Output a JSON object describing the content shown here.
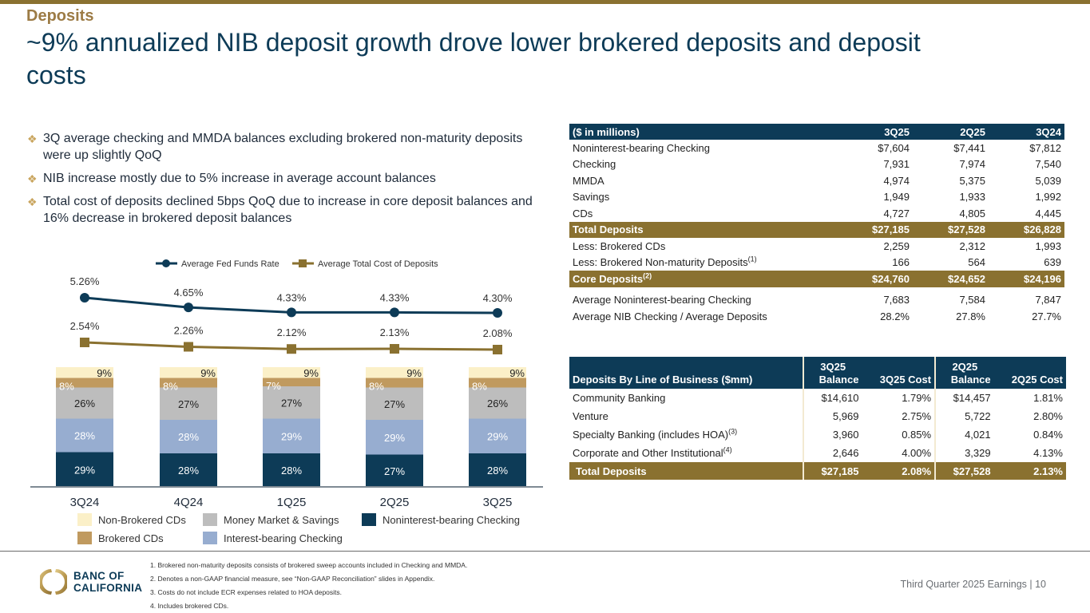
{
  "header": {
    "section": "Deposits",
    "headline": "~9% annualized NIB deposit growth drove lower brokered deposits and deposit costs"
  },
  "bullets": [
    "3Q average checking and MMDA balances excluding brokered non-maturity deposits were up slightly QoQ",
    "NIB increase mostly due to 5% increase in average account balances",
    "Total cost of deposits declined 5bps QoQ due to increase in core deposit balances and 16% decrease in brokered deposit balances"
  ],
  "bullet_icon": "diamond-bullet-icon",
  "colors": {
    "navy": "#0d3b57",
    "gold": "#8a7130",
    "section_gold": "#9c7b45",
    "line_gold": "#8a7130",
    "nib": "#0d3b57",
    "ibc": "#97add0",
    "mms": "#bdbdbd",
    "brokered_cds": "#c09a5f",
    "nonbrokered_cds": "#fbf0c8"
  },
  "chart_data": [
    {
      "type": "line",
      "title": "",
      "categories": [
        "3Q24",
        "4Q24",
        "1Q25",
        "2Q25",
        "3Q25"
      ],
      "legend_position": "top",
      "series": [
        {
          "name": "Average Fed Funds Rate",
          "marker": "circle",
          "values": [
            5.26,
            4.65,
            4.33,
            4.33,
            4.3
          ],
          "labels": [
            "5.26%",
            "4.65%",
            "4.33%",
            "4.33%",
            "4.30%"
          ]
        },
        {
          "name": "Average Total Cost of Deposits",
          "marker": "square",
          "values": [
            2.54,
            2.26,
            2.12,
            2.13,
            2.08
          ],
          "labels": [
            "2.54%",
            "2.26%",
            "2.12%",
            "2.13%",
            "2.08%"
          ]
        }
      ],
      "grid": false
    },
    {
      "type": "bar",
      "stacked": true,
      "categories": [
        "3Q24",
        "4Q24",
        "1Q25",
        "2Q25",
        "3Q25"
      ],
      "ylim": [
        0,
        100
      ],
      "grid": false,
      "legend_position": "bottom",
      "series": [
        {
          "name": "Noninterest-bearing Checking",
          "key": "nib",
          "values": [
            29,
            28,
            28,
            27,
            28
          ]
        },
        {
          "name": "Interest-bearing Checking",
          "key": "ibc",
          "values": [
            28,
            28,
            29,
            29,
            29
          ]
        },
        {
          "name": "Money Market & Savings",
          "key": "mms",
          "values": [
            26,
            27,
            27,
            27,
            26
          ]
        },
        {
          "name": "Brokered CDs",
          "key": "brokered_cds",
          "values": [
            8,
            8,
            7,
            8,
            8
          ]
        },
        {
          "name": "Non-Brokered CDs",
          "key": "nonbrokered_cds",
          "values": [
            9,
            9,
            9,
            9,
            9
          ]
        }
      ],
      "legend": [
        [
          "Non-Brokered CDs",
          "Money Market & Savings",
          "Noninterest-bearing Checking"
        ],
        [
          "Brokered CDs",
          "Interest-bearing Checking"
        ]
      ]
    }
  ],
  "fin_table": {
    "headers": [
      "($ in millions)",
      "3Q25",
      "2Q25",
      "3Q24"
    ],
    "rows": [
      {
        "label": "Noninterest-bearing Checking",
        "values": [
          "$7,604",
          "$7,441",
          "$7,812"
        ],
        "style": ""
      },
      {
        "label": "Checking",
        "values": [
          "7,931",
          "7,974",
          "7,540"
        ],
        "style": ""
      },
      {
        "label": "MMDA",
        "values": [
          "4,974",
          "5,375",
          "5,039"
        ],
        "style": ""
      },
      {
        "label": "Savings",
        "values": [
          "1,949",
          "1,933",
          "1,992"
        ],
        "style": ""
      },
      {
        "label": "CDs",
        "values": [
          "4,727",
          "4,805",
          "4,445"
        ],
        "style": ""
      },
      {
        "label": "Total Deposits",
        "values": [
          "$27,185",
          "$27,528",
          "$26,828"
        ],
        "style": "gold"
      },
      {
        "label": "Less: Brokered CDs",
        "values": [
          "2,259",
          "2,312",
          "1,993"
        ],
        "style": ""
      },
      {
        "label": "Less: Brokered Non-maturity Deposits",
        "sup": "(1)",
        "values": [
          "166",
          "564",
          "639"
        ],
        "style": ""
      },
      {
        "label": "Core Deposits",
        "sup": "(2)",
        "values": [
          "$24,760",
          "$24,652",
          "$24,196"
        ],
        "style": "gold"
      },
      {
        "label": "Average Noninterest-bearing Checking",
        "values": [
          "7,683",
          "7,584",
          "7,847"
        ],
        "style": ""
      },
      {
        "label": "Average NIB Checking / Average Deposits",
        "values": [
          "28.2%",
          "27.8%",
          "27.7%"
        ],
        "style": ""
      }
    ]
  },
  "lob_table": {
    "title": "Deposits By Line of Business ($mm)",
    "headers": [
      {
        "top": "3Q25",
        "bottom": "Balance"
      },
      {
        "top": "",
        "bottom": "3Q25 Cost"
      },
      {
        "top": "2Q25",
        "bottom": "Balance"
      },
      {
        "top": "",
        "bottom": "2Q25 Cost"
      }
    ],
    "rows": [
      {
        "label": "Community Banking",
        "values": [
          "$14,610",
          "1.79%",
          "$14,457",
          "1.81%"
        ]
      },
      {
        "label": "Venture",
        "values": [
          "5,969",
          "2.75%",
          "5,722",
          "2.80%"
        ]
      },
      {
        "label": "Specialty Banking (includes HOA)",
        "sup": "(3)",
        "values": [
          "3,960",
          "0.85%",
          "4,021",
          "0.84%"
        ]
      },
      {
        "label": "Corporate and Other Institutional",
        "sup": "(4)",
        "values": [
          "2,646",
          "4.00%",
          "3,329",
          "4.13%"
        ]
      }
    ],
    "total": {
      "label": "Total Deposits",
      "values": [
        "$27,185",
        "2.08%",
        "$27,528",
        "2.13%"
      ]
    }
  },
  "footer": {
    "logo_line1": "BANC OF",
    "logo_line2": "CALIFORNIA",
    "footnotes": [
      "1.  Brokered non-maturity deposits consists of brokered sweep accounts included in Checking and MMDA.",
      "2.  Denotes a non-GAAP financial measure, see “Non-GAAP Reconciliation” slides in Appendix.",
      "3.  Costs do not include ECR expenses related to HOA deposits.",
      "4.  Includes brokered CDs."
    ],
    "page_label": "Third Quarter 2025 Earnings |  10"
  }
}
